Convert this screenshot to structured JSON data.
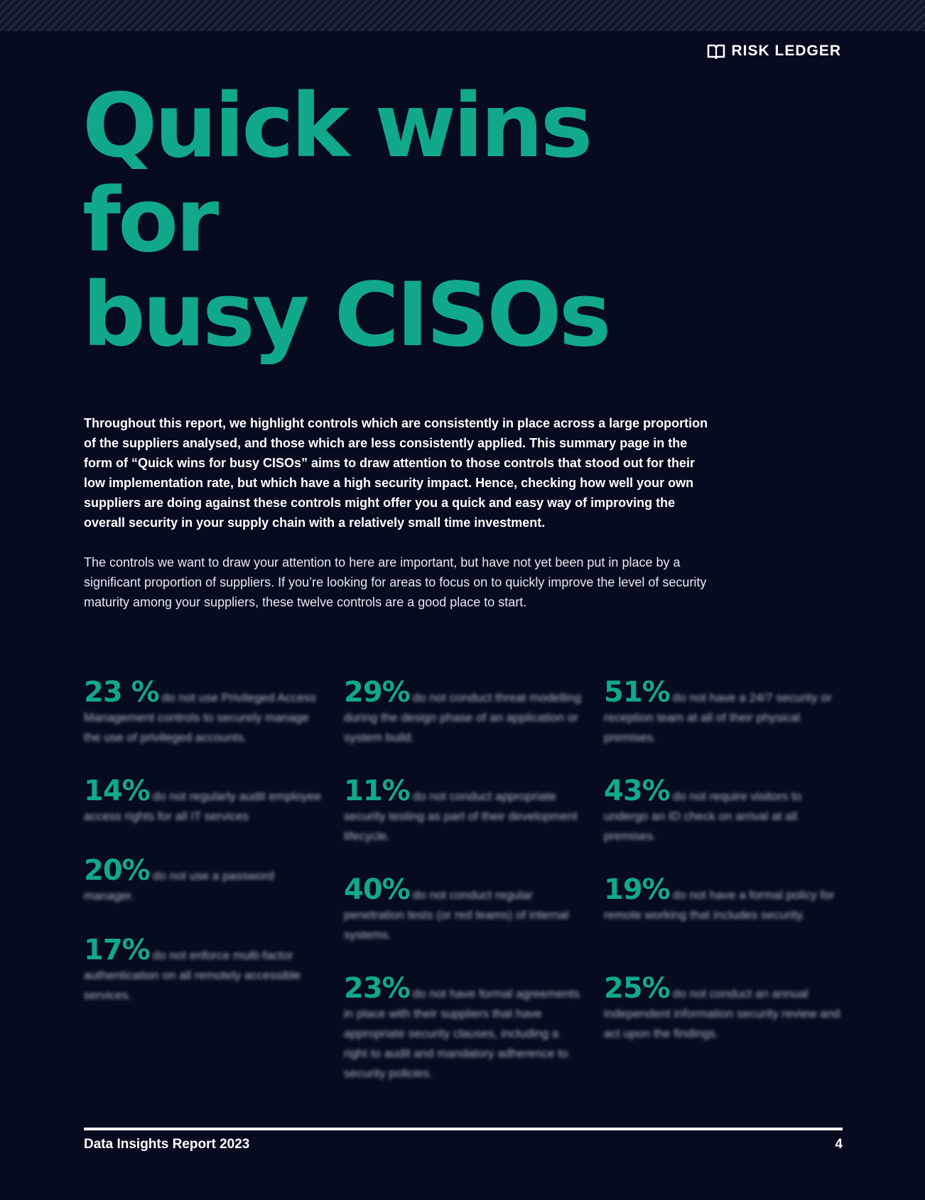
{
  "brand": {
    "name": "RISK LEDGER",
    "icon": "book-icon"
  },
  "title": {
    "line1": "Quick wins for",
    "line2": "busy CISOs"
  },
  "intro_bold": "Throughout this report, we highlight controls which are consistently in place across a large proportion of the suppliers analysed, and those which are less consistently applied. This summary page in the form of “Quick wins for busy CISOs” aims to draw attention to those controls that stood out for their low implementation rate, but which have a high security impact. Hence, checking how well your own suppliers are doing against these controls might offer you a quick and easy way of improving the overall security in your supply chain with a relatively small time investment.",
  "intro_regular": "The controls we want to draw your attention to here are important, but have not yet been put in place by a significant proportion of suppliers. If you’re looking for areas to focus on to quickly improve the level of security maturity among your suppliers, these twelve controls are a good place to start.",
  "stats": [
    {
      "pct": "23 %",
      "text": "do not use Privileged Access Management controls to securely manage the use of privileged accounts."
    },
    {
      "pct": "14%",
      "text": "do not regularly audit employee access rights for all IT services"
    },
    {
      "pct": "20%",
      "text": "do not use a password manager."
    },
    {
      "pct": "17%",
      "text": "do not enforce multi-factor authentication on all remotely accessible services."
    },
    {
      "pct": "29%",
      "text": "do not conduct threat modelling during the design phase of an application or system build."
    },
    {
      "pct": "11%",
      "text": "do not conduct appropriate security testing as part of their development lifecycle."
    },
    {
      "pct": "40%",
      "text": "do not conduct regular penetration tests (or red teams) of internal systems."
    },
    {
      "pct": "23%",
      "text": "do not have formal agreements in place with their suppliers that have appropriate security clauses, including a right to audit and mandatory adherence to security policies."
    },
    {
      "pct": "51%",
      "text": "do not have a 24/7 security or reception team at all of their physical premises."
    },
    {
      "pct": "43%",
      "text": "do not require visitors to undergo an ID check on arrival at all premises."
    },
    {
      "pct": "19%",
      "text": "do not have a formal policy for remote working that includes security."
    },
    {
      "pct": "25%",
      "text": "do not conduct an annual independent information security review and act upon the findings."
    }
  ],
  "footer": {
    "report_title": "Data Insights Report 2023",
    "page_number": "4"
  },
  "colors": {
    "background": "#060b1f",
    "accent": "#12a88c",
    "text": "#ffffff"
  }
}
